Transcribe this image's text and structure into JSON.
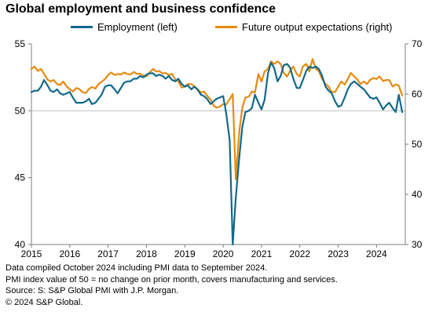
{
  "title": "Global employment and business confidence",
  "footer": {
    "line1": "Data compiled October 2024 including PMI data to September 2024.",
    "line2": "PMI index value of 50 = no change on prior month, covers manufacturing and services.",
    "line3": "Source: S: S&P Global PMI with J.P. Morgan.",
    "line4": "© 2024 S&P Global."
  },
  "colors": {
    "employment": "#13688a",
    "future_output": "#e48b12",
    "axis": "#7f7f7f",
    "gridline": "#bfbfbf"
  },
  "chart_data": {
    "type": "line",
    "title": "Global employment and business confidence",
    "legend_position": "top",
    "grid": false,
    "x_ticks": [
      "2015",
      "2016",
      "2017",
      "2018",
      "2019",
      "2020",
      "2021",
      "2022",
      "2023",
      "2024"
    ],
    "x_range": [
      2015.0,
      2024.75
    ],
    "y_left": {
      "range": [
        40,
        55
      ],
      "ticks": [
        "40",
        "45",
        "50",
        "55"
      ],
      "reference_line": 50
    },
    "y_right": {
      "range": [
        30,
        70
      ],
      "ticks": [
        "30",
        "40",
        "50",
        "60",
        "70"
      ]
    },
    "series": [
      {
        "name": "Employment (left)",
        "axis": "left",
        "x": [
          2015.0,
          2015.08,
          2015.17,
          2015.25,
          2015.33,
          2015.42,
          2015.5,
          2015.58,
          2015.67,
          2015.75,
          2015.83,
          2015.92,
          2016.0,
          2016.08,
          2016.17,
          2016.25,
          2016.33,
          2016.42,
          2016.5,
          2016.58,
          2016.67,
          2016.75,
          2016.83,
          2016.92,
          2017.0,
          2017.08,
          2017.17,
          2017.25,
          2017.33,
          2017.42,
          2017.5,
          2017.58,
          2017.67,
          2017.75,
          2017.83,
          2017.92,
          2018.0,
          2018.08,
          2018.17,
          2018.25,
          2018.33,
          2018.42,
          2018.5,
          2018.58,
          2018.67,
          2018.75,
          2018.83,
          2018.92,
          2019.0,
          2019.08,
          2019.17,
          2019.25,
          2019.33,
          2019.42,
          2019.5,
          2019.58,
          2019.67,
          2019.75,
          2019.83,
          2019.92,
          2020.0,
          2020.08,
          2020.17,
          2020.25,
          2020.33,
          2020.42,
          2020.5,
          2020.58,
          2020.67,
          2020.75,
          2020.83,
          2020.92,
          2021.0,
          2021.08,
          2021.17,
          2021.25,
          2021.33,
          2021.42,
          2021.5,
          2021.58,
          2021.67,
          2021.75,
          2021.83,
          2021.92,
          2022.0,
          2022.08,
          2022.17,
          2022.25,
          2022.33,
          2022.42,
          2022.5,
          2022.58,
          2022.67,
          2022.75,
          2022.83,
          2022.92,
          2023.0,
          2023.08,
          2023.17,
          2023.25,
          2023.33,
          2023.42,
          2023.5,
          2023.58,
          2023.67,
          2023.75,
          2023.83,
          2023.92,
          2024.0,
          2024.08,
          2024.17,
          2024.25,
          2024.33,
          2024.42,
          2024.5,
          2024.58,
          2024.67
        ],
        "values": [
          51.4,
          51.5,
          51.5,
          51.8,
          52.3,
          51.9,
          51.5,
          51.4,
          51.6,
          51.3,
          51.2,
          51.3,
          51.4,
          51.0,
          50.6,
          50.6,
          50.6,
          50.7,
          50.9,
          50.5,
          50.6,
          50.9,
          51.2,
          51.8,
          51.9,
          51.9,
          51.6,
          51.3,
          51.7,
          52.1,
          52.2,
          52.2,
          52.4,
          52.4,
          52.6,
          52.5,
          52.7,
          52.8,
          52.8,
          52.6,
          52.7,
          52.6,
          52.4,
          52.6,
          52.3,
          52.2,
          52.4,
          52.0,
          51.8,
          51.9,
          51.6,
          51.8,
          51.6,
          51.2,
          51.1,
          50.9,
          50.5,
          50.7,
          50.9,
          51.0,
          51.1,
          49.8,
          47.8,
          40.0,
          43.5,
          46.5,
          48.8,
          49.9,
          50.0,
          50.2,
          51.2,
          50.6,
          50.1,
          50.8,
          52.8,
          53.6,
          53.2,
          52.2,
          52.6,
          53.4,
          53.5,
          53.2,
          52.4,
          51.7,
          51.7,
          52.3,
          53.0,
          53.3,
          53.2,
          53.3,
          53.1,
          52.6,
          51.8,
          51.5,
          51.3,
          50.7,
          50.3,
          50.4,
          51.0,
          51.6,
          52.0,
          52.2,
          52.0,
          51.8,
          51.6,
          51.3,
          51.0,
          50.9,
          51.0,
          50.6,
          50.1,
          50.4,
          50.6,
          50.2,
          49.9,
          51.2,
          49.9
        ]
      },
      {
        "name": "Future output expectations (right)",
        "axis": "right",
        "x": [
          2015.0,
          2015.08,
          2015.17,
          2015.25,
          2015.33,
          2015.42,
          2015.5,
          2015.58,
          2015.67,
          2015.75,
          2015.83,
          2015.92,
          2016.0,
          2016.08,
          2016.17,
          2016.25,
          2016.33,
          2016.42,
          2016.5,
          2016.58,
          2016.67,
          2016.75,
          2016.83,
          2016.92,
          2017.0,
          2017.08,
          2017.17,
          2017.25,
          2017.33,
          2017.42,
          2017.5,
          2017.58,
          2017.67,
          2017.75,
          2017.83,
          2017.92,
          2018.0,
          2018.08,
          2018.17,
          2018.25,
          2018.33,
          2018.42,
          2018.5,
          2018.58,
          2018.67,
          2018.75,
          2018.83,
          2018.92,
          2019.0,
          2019.08,
          2019.17,
          2019.25,
          2019.33,
          2019.42,
          2019.5,
          2019.58,
          2019.67,
          2019.75,
          2019.83,
          2019.92,
          2020.0,
          2020.08,
          2020.17,
          2020.25,
          2020.33,
          2020.42,
          2020.5,
          2020.58,
          2020.67,
          2020.75,
          2020.83,
          2020.92,
          2021.0,
          2021.08,
          2021.17,
          2021.25,
          2021.33,
          2021.42,
          2021.5,
          2021.58,
          2021.67,
          2021.75,
          2021.83,
          2021.92,
          2022.0,
          2022.08,
          2022.17,
          2022.25,
          2022.33,
          2022.42,
          2022.5,
          2022.58,
          2022.67,
          2022.75,
          2022.83,
          2022.92,
          2023.0,
          2023.08,
          2023.17,
          2023.25,
          2023.33,
          2023.42,
          2023.5,
          2023.58,
          2023.67,
          2023.75,
          2023.83,
          2023.92,
          2024.0,
          2024.08,
          2024.17,
          2024.25,
          2024.33,
          2024.42,
          2024.5,
          2024.58,
          2024.67
        ],
        "values": [
          65.0,
          65.5,
          64.6,
          65.0,
          64.0,
          62.9,
          62.5,
          62.8,
          62.0,
          61.8,
          62.5,
          61.5,
          61.0,
          60.5,
          61.2,
          61.0,
          60.4,
          60.2,
          61.0,
          61.4,
          61.1,
          62.0,
          62.4,
          63.0,
          63.8,
          64.3,
          63.8,
          64.0,
          63.9,
          64.3,
          64.0,
          63.9,
          64.4,
          64.0,
          64.1,
          63.7,
          63.5,
          64.3,
          65.0,
          64.5,
          64.6,
          64.1,
          64.2,
          63.8,
          64.0,
          62.9,
          62.5,
          61.3,
          61.5,
          62.0,
          62.0,
          61.5,
          61.0,
          60.3,
          60.5,
          59.7,
          58.9,
          57.7,
          57.3,
          57.5,
          58.0,
          57.9,
          59.0,
          60.0,
          43.0,
          52.5,
          57.3,
          59.3,
          59.5,
          60.5,
          60.3,
          64.0,
          62.5,
          64.5,
          65.0,
          66.5,
          66.0,
          66.5,
          66.0,
          64.2,
          63.5,
          64.7,
          65.5,
          64.0,
          63.5,
          65.5,
          66.0,
          64.5,
          67.0,
          65.0,
          64.5,
          63.0,
          62.0,
          61.5,
          60.4,
          60.4,
          61.5,
          62.5,
          61.9,
          63.0,
          64.2,
          63.5,
          62.9,
          62.0,
          62.5,
          62.0,
          62.8,
          63.2,
          63.0,
          63.5,
          62.6,
          62.8,
          62.8,
          61.5,
          61.9,
          61.7,
          59.7
        ]
      }
    ]
  }
}
